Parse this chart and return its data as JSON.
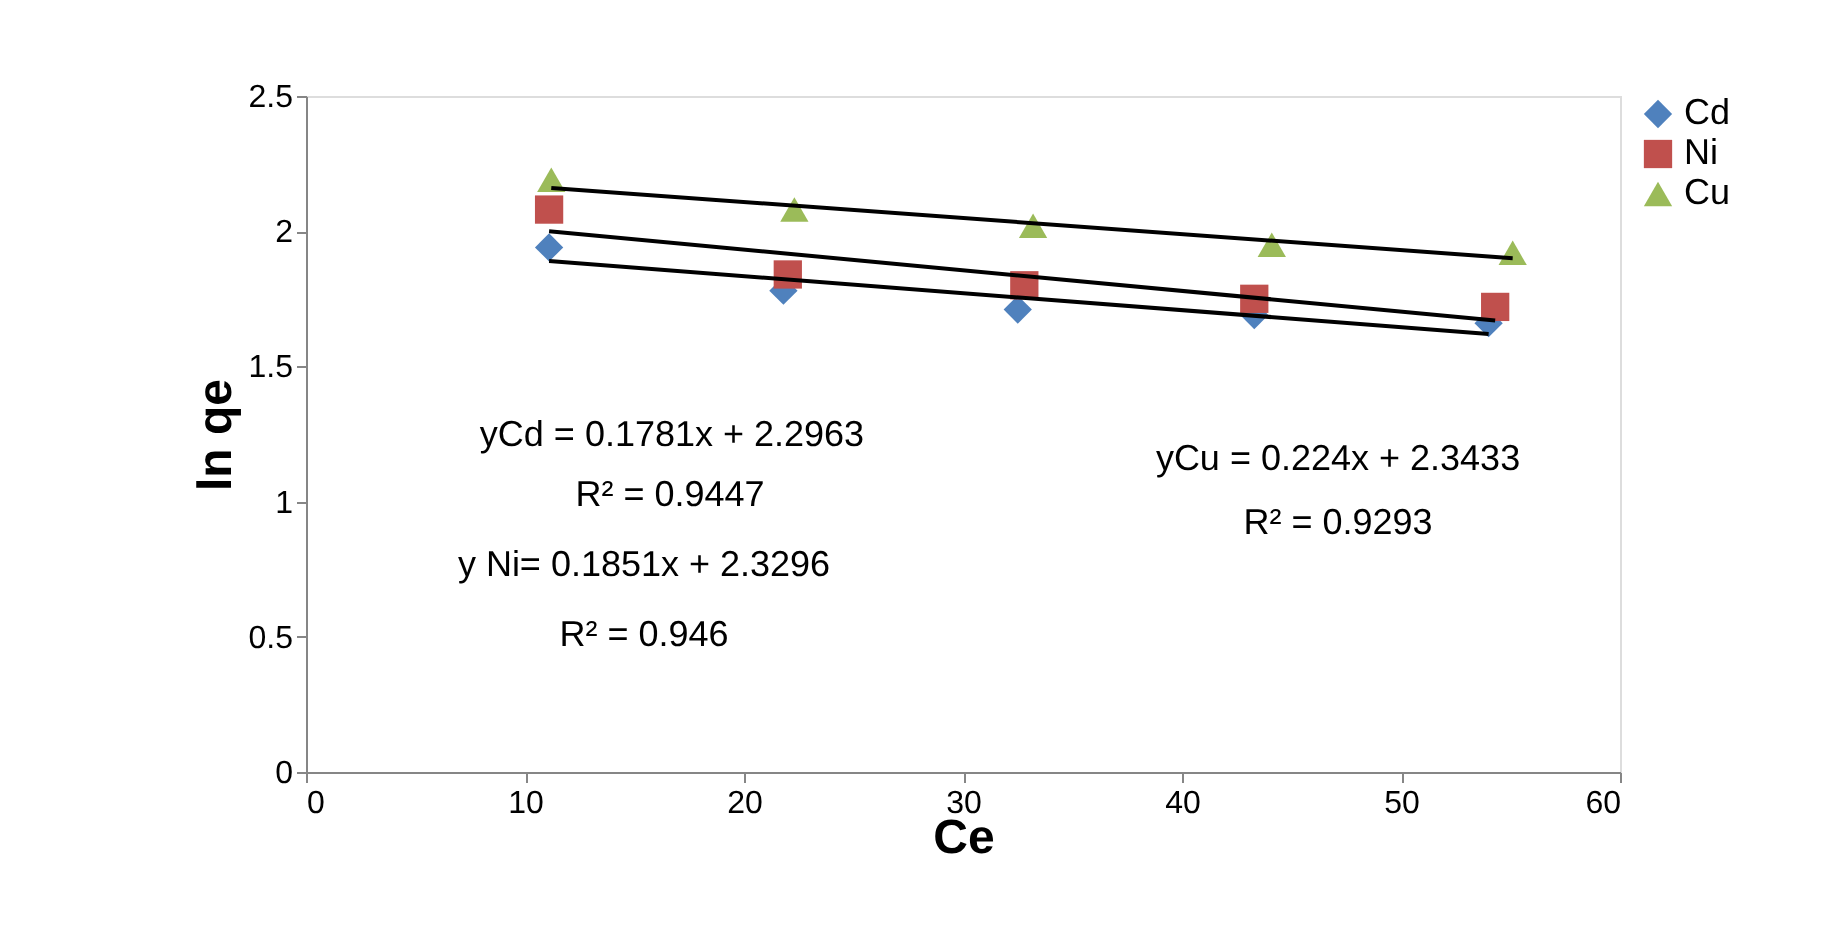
{
  "chart_data": {
    "type": "scatter",
    "xlabel": "Ce",
    "ylabel": "ln qe",
    "xlim": [
      0,
      60
    ],
    "xticks": [
      0,
      10,
      20,
      30,
      40,
      50,
      60
    ],
    "ylim": [
      0,
      2.5
    ],
    "yticks": [
      0,
      0.5,
      1,
      1.5,
      2,
      2.5
    ],
    "grid": false,
    "legend": "right",
    "series": [
      {
        "name": "Cd",
        "marker": "diamond",
        "color": "#4f81bd",
        "x": [
          11.1,
          21.8,
          32.5,
          43.3,
          54.0
        ],
        "values": [
          1.94,
          1.78,
          1.71,
          1.69,
          1.66
        ]
      },
      {
        "name": "Ni",
        "marker": "square",
        "color": "#c0504d",
        "x": [
          11.1,
          22.0,
          32.8,
          43.3,
          54.3
        ],
        "values": [
          2.08,
          1.84,
          1.8,
          1.75,
          1.72
        ]
      },
      {
        "name": "Cu",
        "marker": "triangle",
        "color": "#9bbb59",
        "x": [
          11.2,
          22.3,
          33.2,
          44.1,
          55.1
        ],
        "values": [
          2.19,
          2.08,
          2.02,
          1.95,
          1.92
        ]
      },
      {
        "type": "line",
        "marker": "none",
        "color": "#000000",
        "x": [
          11.1,
          54.0
        ],
        "values": [
          1.89,
          1.62
        ]
      },
      {
        "type": "line",
        "marker": "none",
        "color": "#000000",
        "x": [
          11.1,
          54.3
        ],
        "values": [
          2.0,
          1.67
        ]
      },
      {
        "type": "line",
        "marker": "none",
        "color": "#000000",
        "x": [
          11.2,
          55.1
        ],
        "values": [
          2.16,
          1.9
        ]
      }
    ],
    "annotations": [
      "yCd = 0.1781x + 2.2963",
      "R² = 0.9447",
      "y Ni= 0.1851x + 2.3296",
      "R² = 0.946",
      "yCu = 0.224x + 2.3433",
      "R² = 0.9293"
    ]
  }
}
